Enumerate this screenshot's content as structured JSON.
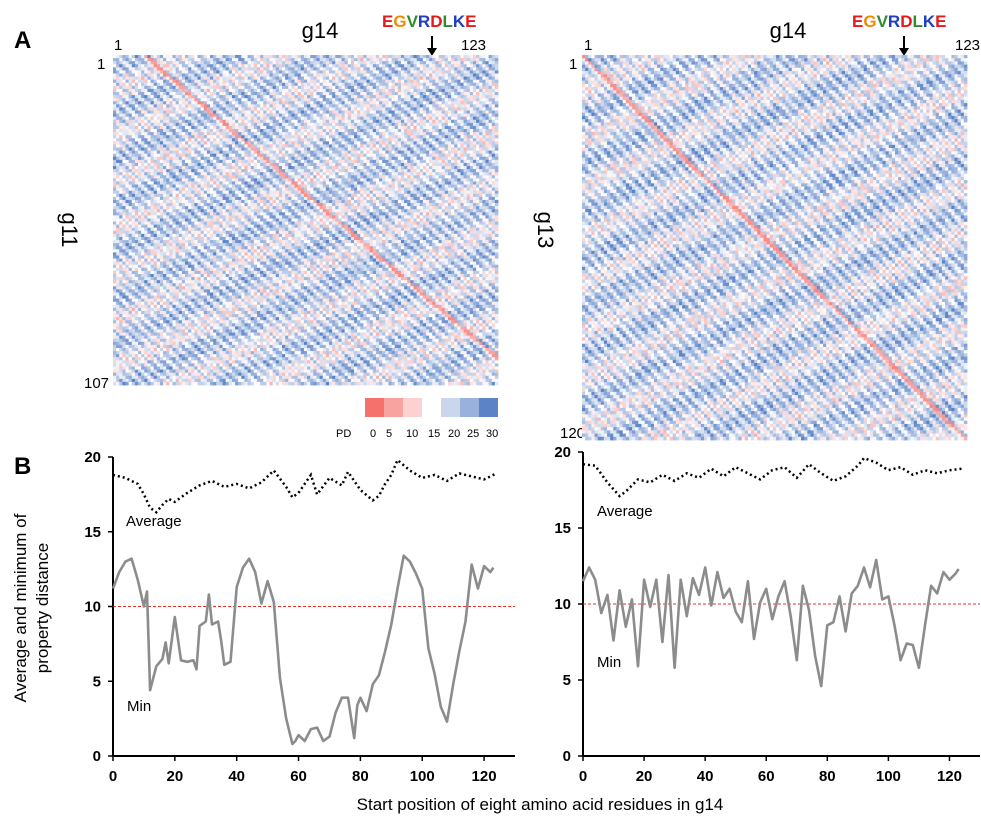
{
  "panel_a": {
    "label": "A"
  },
  "panel_b": {
    "label": "B"
  },
  "motif": [
    "E",
    "G",
    "V",
    "R",
    "D",
    "L",
    "K",
    "E"
  ],
  "motif_colors": [
    "#e41a1c",
    "#f08c00",
    "#2e8b2e",
    "#1f3fbf",
    "#e41a1c",
    "#2e8b2e",
    "#1f3fbf",
    "#e41a1c"
  ],
  "heatmap_colors": [
    "#f4726b",
    "#f9a3a0",
    "#fcd2d0",
    "#ffffff",
    "#c9d6ec",
    "#99b2dd",
    "#5b83c6"
  ],
  "legend": {
    "label": "PD",
    "ticks": [
      "0",
      "5",
      "10",
      "15",
      "20",
      "25",
      "30"
    ]
  },
  "heatmaps": [
    {
      "top": "g14",
      "left": "g11",
      "top_start": "1",
      "top_end": "123",
      "left_start": "1",
      "left_end": "107"
    },
    {
      "top": "g14",
      "left": "g13",
      "top_start": "1",
      "top_end": "123",
      "left_start": "1",
      "left_end": "120"
    }
  ],
  "labels": {
    "ylabel_line1": "Average and minimum of",
    "ylabel_line2": "property distance",
    "xlabel": "Start position of eight amino acid residues in g14",
    "average": "Average",
    "min": "Min"
  },
  "chart_data": [
    {
      "type": "line",
      "xlim": [
        0,
        130
      ],
      "ylim": [
        0,
        20
      ],
      "xticks": [
        0,
        20,
        40,
        60,
        80,
        100,
        120
      ],
      "yticks": [
        0,
        5,
        10,
        15,
        20
      ],
      "threshold": 10,
      "series": [
        {
          "name": "Average",
          "style": "dotted",
          "x": [
            0,
            4,
            8,
            10,
            12,
            14,
            16,
            18,
            20,
            24,
            28,
            32,
            36,
            40,
            44,
            48,
            52,
            56,
            58,
            60,
            64,
            66,
            70,
            74,
            76,
            80,
            84,
            86,
            88,
            90,
            92,
            96,
            100,
            104,
            108,
            112,
            116,
            120,
            124
          ],
          "y": [
            18.8,
            18.6,
            18.2,
            17.5,
            16.6,
            16.3,
            16.8,
            17.2,
            17.0,
            17.6,
            18.1,
            18.4,
            18.0,
            18.2,
            17.9,
            18.3,
            19.1,
            18.0,
            17.3,
            17.6,
            18.8,
            17.5,
            18.6,
            18.1,
            19.0,
            17.8,
            17.1,
            17.4,
            18.2,
            18.8,
            19.8,
            19.1,
            18.6,
            18.8,
            18.4,
            18.9,
            18.7,
            18.5,
            18.9
          ]
        },
        {
          "name": "Min",
          "style": "solid",
          "x": [
            0,
            2,
            4,
            6,
            8,
            10,
            11,
            12,
            14,
            16,
            17,
            18,
            20,
            22,
            24,
            26,
            27,
            28,
            30,
            31,
            32,
            34,
            35,
            36,
            38,
            40,
            42,
            44,
            46,
            48,
            50,
            52,
            54,
            56,
            58,
            59,
            60,
            62,
            64,
            66,
            68,
            70,
            72,
            74,
            76,
            78,
            79,
            80,
            82,
            84,
            86,
            88,
            90,
            92,
            94,
            96,
            98,
            100,
            102,
            104,
            106,
            108,
            110,
            112,
            114,
            116,
            118,
            120,
            122,
            123
          ],
          "y": [
            11.2,
            12.3,
            13.0,
            13.2,
            11.8,
            10.0,
            11.0,
            4.4,
            6.0,
            6.5,
            7.6,
            6.2,
            9.3,
            6.4,
            6.3,
            6.4,
            5.8,
            8.7,
            9.0,
            10.8,
            8.8,
            9.0,
            7.7,
            6.1,
            6.3,
            11.3,
            12.6,
            13.2,
            12.3,
            10.2,
            11.7,
            10.3,
            5.2,
            2.5,
            0.8,
            1.0,
            1.4,
            1.0,
            1.8,
            1.9,
            1.0,
            1.3,
            2.9,
            3.9,
            3.9,
            1.2,
            3.4,
            3.9,
            3.0,
            4.8,
            5.4,
            7.0,
            8.8,
            11.2,
            13.4,
            13.0,
            12.2,
            11.2,
            7.2,
            5.5,
            3.3,
            2.3,
            4.8,
            7.0,
            9.0,
            12.8,
            11.2,
            12.7,
            12.3,
            12.6
          ]
        }
      ]
    },
    {
      "type": "line",
      "xlim": [
        0,
        130
      ],
      "ylim": [
        0,
        20
      ],
      "xticks": [
        0,
        20,
        40,
        60,
        80,
        100,
        120
      ],
      "yticks": [
        0,
        5,
        10,
        15,
        20
      ],
      "threshold": 10,
      "series": [
        {
          "name": "Average",
          "style": "dotted",
          "x": [
            0,
            4,
            8,
            12,
            14,
            18,
            22,
            26,
            30,
            34,
            38,
            42,
            46,
            50,
            54,
            58,
            62,
            66,
            70,
            74,
            78,
            82,
            86,
            90,
            92,
            96,
            100,
            104,
            108,
            112,
            116,
            120,
            124
          ],
          "y": [
            19.2,
            19.1,
            18.0,
            17.1,
            17.4,
            18.2,
            18.0,
            18.5,
            18.1,
            18.6,
            18.3,
            18.9,
            18.4,
            19.0,
            18.6,
            18.2,
            18.8,
            19.0,
            18.3,
            19.2,
            18.6,
            18.1,
            18.4,
            19.1,
            19.6,
            19.3,
            18.8,
            19.0,
            18.5,
            18.8,
            18.6,
            18.8,
            18.9
          ]
        },
        {
          "name": "Min",
          "style": "solid",
          "x": [
            0,
            2,
            4,
            6,
            8,
            10,
            12,
            14,
            16,
            18,
            20,
            22,
            24,
            26,
            28,
            30,
            32,
            34,
            36,
            38,
            40,
            42,
            44,
            46,
            48,
            50,
            52,
            54,
            56,
            58,
            60,
            62,
            64,
            66,
            68,
            70,
            72,
            74,
            76,
            78,
            80,
            82,
            84,
            86,
            88,
            90,
            92,
            94,
            96,
            98,
            100,
            102,
            104,
            106,
            108,
            110,
            112,
            114,
            116,
            118,
            120,
            122,
            123
          ],
          "y": [
            11.5,
            12.4,
            11.6,
            9.4,
            10.6,
            7.6,
            10.9,
            8.5,
            10.3,
            5.9,
            11.6,
            9.8,
            11.6,
            7.5,
            11.9,
            5.8,
            11.6,
            9.2,
            11.7,
            10.6,
            12.4,
            9.9,
            12.1,
            10.4,
            11.0,
            9.5,
            8.8,
            11.5,
            7.7,
            10.1,
            11.0,
            9.0,
            10.5,
            11.5,
            9.2,
            6.3,
            11.2,
            9.6,
            6.6,
            4.6,
            8.6,
            8.8,
            10.5,
            8.2,
            10.7,
            11.2,
            12.4,
            11.1,
            12.9,
            10.3,
            10.5,
            8.6,
            6.3,
            7.4,
            7.3,
            5.8,
            8.6,
            11.2,
            10.7,
            12.1,
            11.6,
            12.0,
            12.3
          ]
        }
      ]
    }
  ]
}
